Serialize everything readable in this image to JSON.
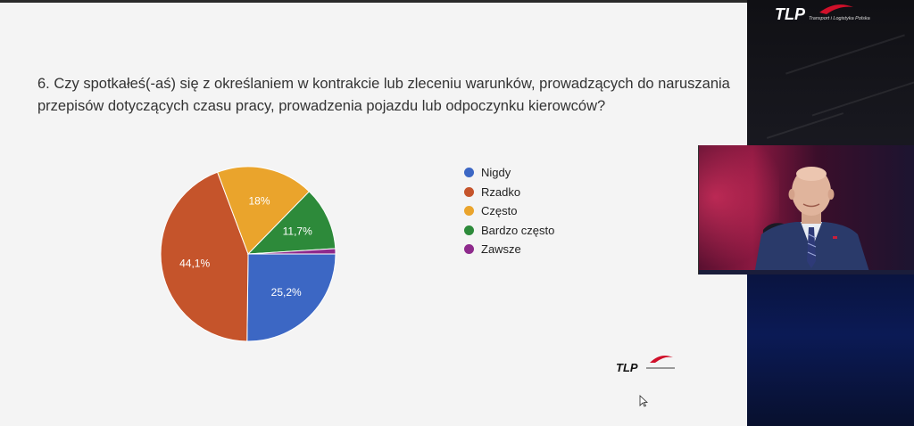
{
  "question": "6. Czy spotkałeś(-aś) się z określaniem w kontrakcie lub zleceniu warunków, prowadzących do naruszania przepisów dotyczących czasu pracy, prowadzenia pojazdu lub odpoczynku kierowców?",
  "chart_data": {
    "type": "pie",
    "categories": [
      "Nigdy",
      "Rzadko",
      "Często",
      "Bardzo często",
      "Zawsze"
    ],
    "values": [
      25.2,
      44.1,
      18.0,
      11.7,
      1.0
    ],
    "labels": [
      "25,2%",
      "44,1%",
      "18%",
      "11,7%",
      ""
    ],
    "colors": [
      "#3c67c4",
      "#c5542b",
      "#eaa42c",
      "#2d8a3a",
      "#8e2a8c"
    ],
    "legend_position": "right"
  },
  "branding": {
    "slide_logo_text": "TLP",
    "top_logo_text": "TLP",
    "top_logo_subtitle": "Transport i Logistyka Polska",
    "accent_color": "#d0102a"
  },
  "icons": {
    "cursor": "mouse-pointer-icon"
  }
}
